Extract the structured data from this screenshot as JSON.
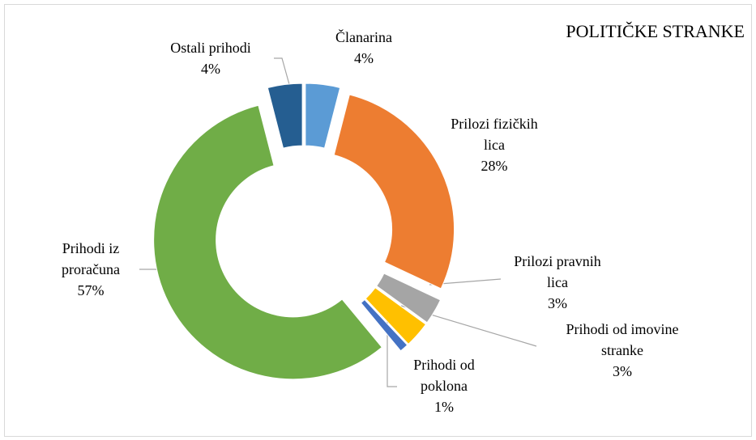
{
  "chart_data": {
    "type": "donut",
    "title": "POLITIČKE STRANKE",
    "categories": [
      "Članarina",
      "Prilozi fizičkih lica",
      "Prilozi pravnih lica",
      "Prihodi od imovine stranke",
      "Prihodi od poklona",
      "Prihodi iz proračuna",
      "Ostali prihodi"
    ],
    "values": [
      4,
      28,
      3,
      3,
      1,
      57,
      4
    ],
    "value_labels": [
      "4%",
      "28%",
      "3%",
      "3%",
      "1%",
      "57%",
      "4%"
    ],
    "colors": [
      "#5b9bd5",
      "#ed7d31",
      "#a5a5a5",
      "#ffc000",
      "#4472c4",
      "#70ad47",
      "#255e91"
    ]
  }
}
